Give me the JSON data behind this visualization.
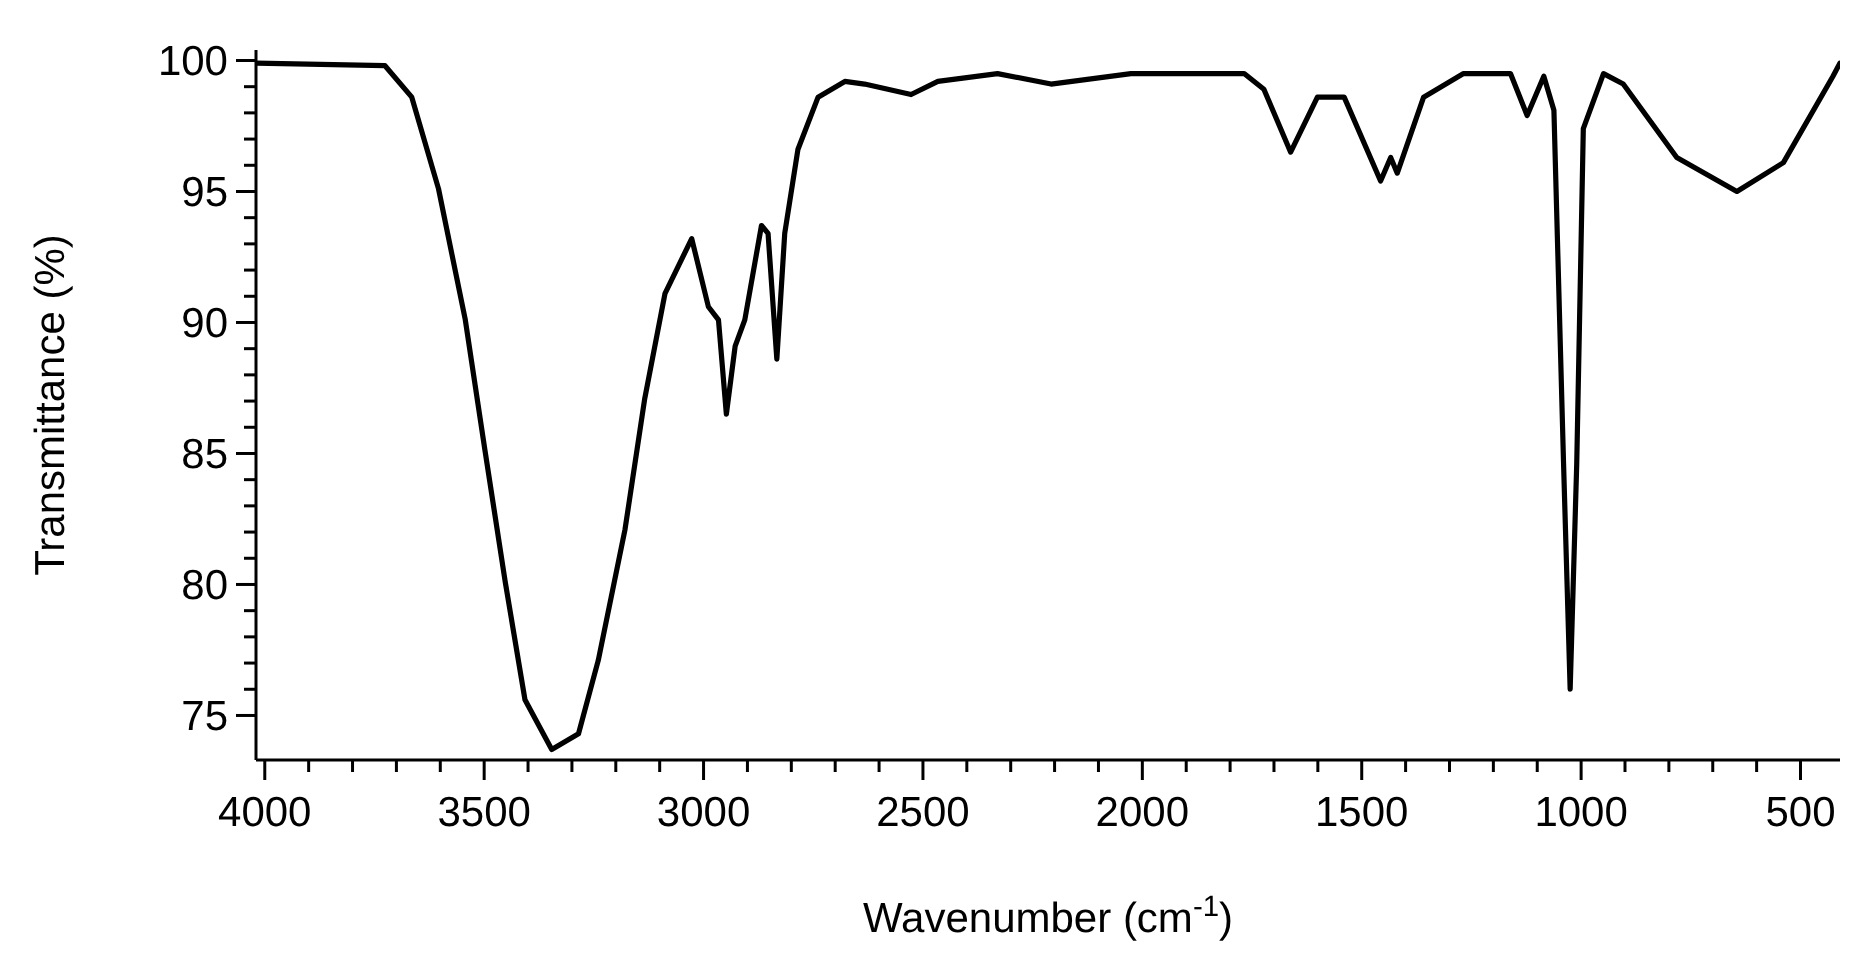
{
  "chart_data": {
    "type": "line",
    "xlabel": "Wavenumber (cm$^{-1}$)",
    "ylabel": "Transmittance (%)",
    "color": "#000000",
    "x": [
      4020,
      3726,
      3665,
      3604,
      3543,
      3498,
      3452,
      3407,
      3346,
      3285,
      3240,
      3179,
      3134,
      3088,
      3027,
      2989,
      2966,
      2948,
      2928,
      2906,
      2868,
      2853,
      2833,
      2815,
      2785,
      2739,
      2678,
      2633,
      2527,
      2466,
      2330,
      2208,
      2026,
      1768,
      1723,
      1662,
      1601,
      1540,
      1457,
      1434,
      1419,
      1359,
      1268,
      1161,
      1123,
      1085,
      1062,
      1040,
      1025,
      1010,
      995,
      949,
      904,
      782,
      645,
      539,
      426,
      410
    ],
    "values": [
      99.9,
      99.8,
      98.6,
      95.1,
      90.1,
      85.1,
      80.1,
      75.6,
      73.7,
      74.3,
      77.1,
      82.1,
      87.1,
      91.1,
      93.2,
      90.6,
      90.1,
      86.5,
      89.1,
      90.1,
      93.7,
      93.4,
      88.6,
      93.4,
      96.6,
      98.6,
      99.2,
      99.1,
      98.7,
      99.2,
      99.5,
      99.1,
      99.5,
      99.5,
      98.9,
      96.5,
      98.6,
      98.6,
      95.4,
      96.3,
      95.7,
      98.6,
      99.5,
      99.5,
      97.9,
      99.4,
      98.1,
      84.6,
      76.0,
      84.6,
      97.4,
      99.5,
      99.1,
      96.3,
      95.0,
      96.1,
      99.4,
      99.9
    ],
    "xlim": [
      4020,
      410
    ],
    "xticks": [
      4000,
      {
        "value": 3900,
        "label": null
      },
      {
        "value": 3800,
        "label": null
      },
      {
        "value": 3700,
        "label": null
      },
      {
        "value": 3600,
        "label": null
      },
      3500,
      {
        "value": 3400,
        "label": null
      },
      {
        "value": 3300,
        "label": null
      },
      {
        "value": 3200,
        "label": null
      },
      {
        "value": 3100,
        "label": null
      },
      3000,
      {
        "value": 2900,
        "label": null
      },
      {
        "value": 2800,
        "label": null
      },
      {
        "value": 2700,
        "label": null
      },
      {
        "value": 2600,
        "label": null
      },
      2500,
      {
        "value": 2400,
        "label": null
      },
      {
        "value": 2300,
        "label": null
      },
      {
        "value": 2200,
        "label": null
      },
      {
        "value": 2100,
        "label": null
      },
      2000,
      {
        "value": 1900,
        "label": null
      },
      {
        "value": 1800,
        "label": null
      },
      {
        "value": 1700,
        "label": null
      },
      {
        "value": 1600,
        "label": null
      },
      1500,
      {
        "value": 1400,
        "label": null
      },
      {
        "value": 1300,
        "label": null
      },
      {
        "value": 1200,
        "label": null
      },
      {
        "value": 1100,
        "label": null
      },
      1000,
      {
        "value": 900,
        "label": null
      },
      {
        "value": 800,
        "label": null
      },
      {
        "value": 700,
        "label": null
      },
      {
        "value": 600,
        "label": null
      },
      500
    ],
    "ylim": [
      73.3,
      100.4
    ],
    "yticks": [
      75,
      {
        "value": 76,
        "label": null
      },
      {
        "value": 77,
        "label": null
      },
      {
        "value": 78,
        "label": null
      },
      {
        "value": 79,
        "label": null
      },
      80,
      {
        "value": 81,
        "label": null
      },
      {
        "value": 82,
        "label": null
      },
      {
        "value": 83,
        "label": null
      },
      {
        "value": 84,
        "label": null
      },
      85,
      {
        "value": 86,
        "label": null
      },
      {
        "value": 87,
        "label": null
      },
      {
        "value": 88,
        "label": null
      },
      {
        "value": 89,
        "label": null
      },
      90,
      {
        "value": 91,
        "label": null
      },
      {
        "value": 92,
        "label": null
      },
      {
        "value": 93,
        "label": null
      },
      {
        "value": 94,
        "label": null
      },
      95,
      {
        "value": 96,
        "label": null
      },
      {
        "value": 97,
        "label": null
      },
      {
        "value": 98,
        "label": null
      },
      {
        "value": 99,
        "label": null
      },
      100
    ]
  }
}
